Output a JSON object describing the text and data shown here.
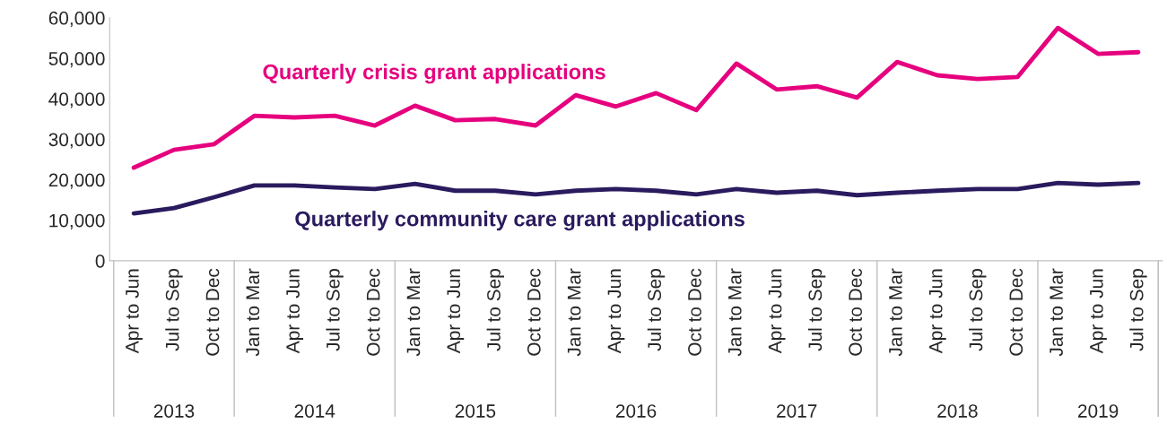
{
  "chart_data": {
    "type": "line",
    "categories": [
      "Apr to Jun",
      "Jul to Sep",
      "Oct to Dec",
      "Jan to Mar",
      "Apr to Jun",
      "Jul to Sep",
      "Oct to Dec",
      "Jan to Mar",
      "Apr to Jun",
      "Jul to Sep",
      "Oct to Dec",
      "Jan to Mar",
      "Apr to Jun",
      "Jul to Sep",
      "Oct to Dec",
      "Jan to Mar",
      "Apr to Jun",
      "Jul to Sep",
      "Oct to Dec",
      "Jan to Mar",
      "Apr to Jun",
      "Jul to Sep",
      "Oct to Dec",
      "Jan to Mar",
      "Apr to Jun",
      "Jul to Sep"
    ],
    "series": [
      {
        "name": "Quarterly crisis grant applications",
        "color": "#e6007e",
        "values": [
          23000,
          27400,
          28800,
          35800,
          35400,
          35800,
          33400,
          38300,
          34700,
          35000,
          33400,
          40900,
          38100,
          41400,
          37200,
          48700,
          42300,
          43100,
          40300,
          49100,
          45800,
          44900,
          45400,
          57500,
          51100,
          51500
        ]
      },
      {
        "name": "Quarterly community care grant applications",
        "color": "#2a1a5e",
        "values": [
          11700,
          13000,
          15700,
          18600,
          18600,
          18100,
          17700,
          19000,
          17300,
          17300,
          16400,
          17300,
          17700,
          17300,
          16400,
          17700,
          16800,
          17300,
          16200,
          16800,
          17300,
          17700,
          17700,
          19200,
          18800,
          19200
        ]
      }
    ],
    "annotations": [
      "2013",
      "2014",
      "2015",
      "2016",
      "2017",
      "2018",
      "2019"
    ],
    "ylim": [
      0,
      60000
    ],
    "yticks": [
      0,
      {
        "value": 10000,
        "label": "10,000"
      },
      {
        "value": 20000,
        "label": "20,000"
      },
      {
        "value": 30000,
        "label": "30,000"
      },
      {
        "value": 40000,
        "label": "40,000"
      },
      {
        "value": 50000,
        "label": "50,000"
      },
      {
        "value": 60000,
        "label": "60,000"
      }
    ],
    "grid": false,
    "legend": false,
    "marker": "none",
    "line_style": "solid"
  }
}
